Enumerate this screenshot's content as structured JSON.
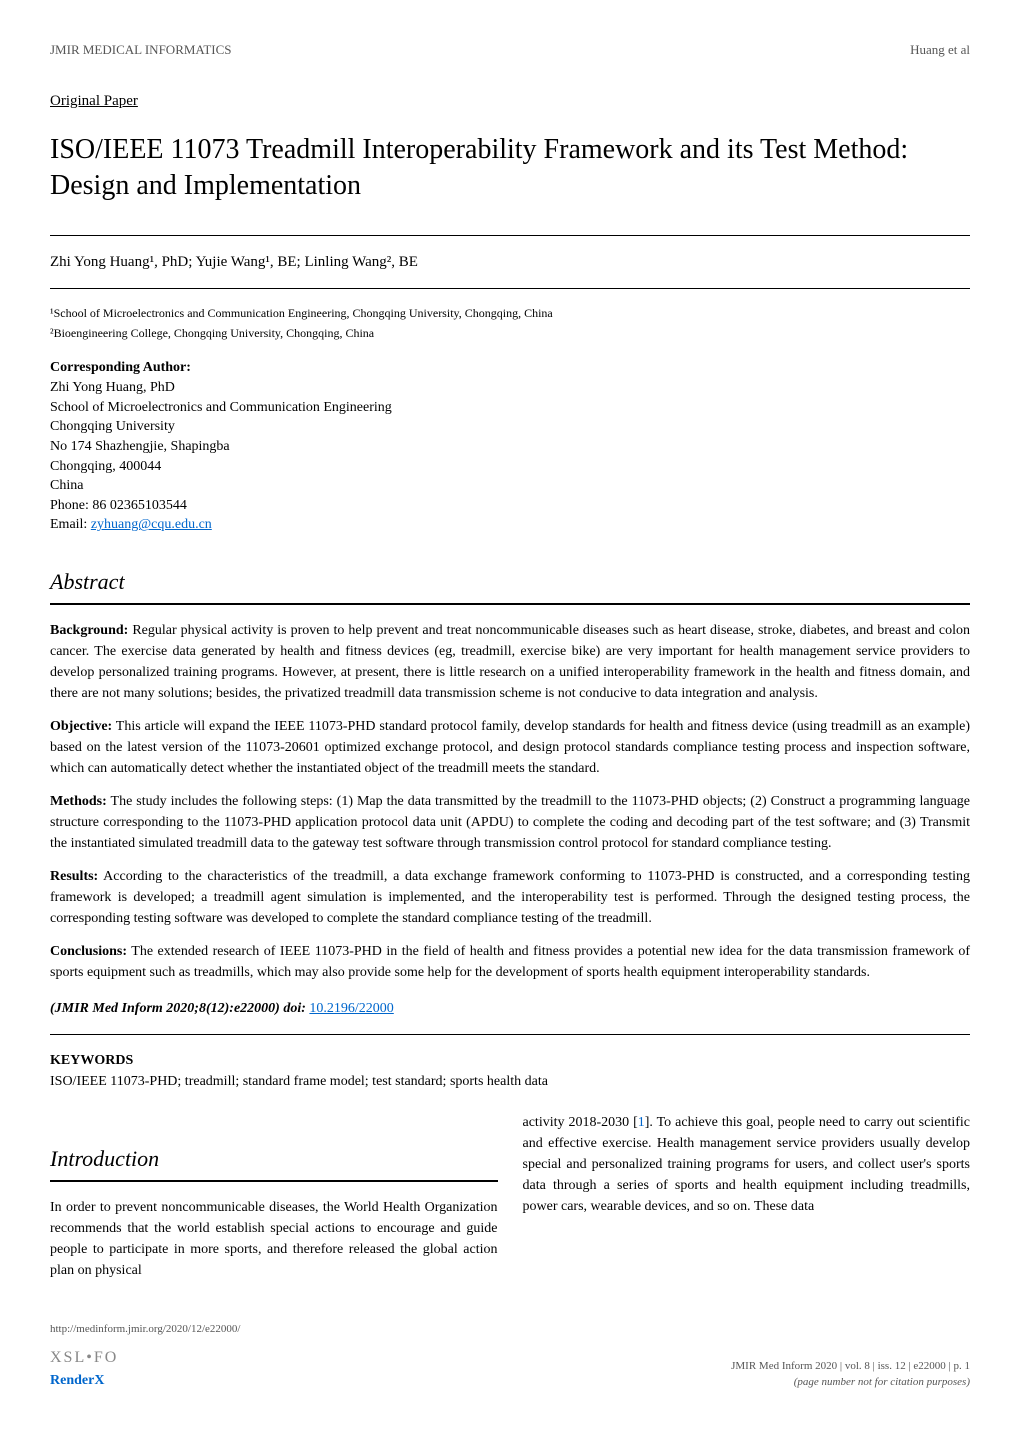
{
  "header": {
    "journal": "JMIR MEDICAL INFORMATICS",
    "authors_short": "Huang et al"
  },
  "paper_type": "Original Paper",
  "title": "ISO/IEEE 11073 Treadmill Interoperability Framework and its Test Method: Design and Implementation",
  "authors_line": "Zhi Yong Huang¹, PhD; Yujie Wang¹, BE; Linling Wang², BE",
  "affiliations": [
    "¹School of Microelectronics and Communication Engineering, Chongqing University, Chongqing, China",
    "²Bioengineering College, Chongqing University, Chongqing, China"
  ],
  "corresponding": {
    "label": "Corresponding Author:",
    "name": "Zhi Yong Huang, PhD",
    "dept": "School of Microelectronics and Communication Engineering",
    "university": "Chongqing University",
    "address": "No 174 Shazhengjie, Shapingba",
    "city": "Chongqing, 400044",
    "country": "China",
    "phone": "Phone: 86 02365103544",
    "email_label": "Email: ",
    "email": "zyhuang@cqu.edu.cn"
  },
  "abstract_heading": "Abstract",
  "abstract": {
    "background_label": "Background:",
    "background": " Regular physical activity is proven to help prevent and treat noncommunicable diseases such as heart disease, stroke, diabetes, and breast and colon cancer. The exercise data generated by health and fitness devices (eg, treadmill, exercise bike) are very important for health management service providers to develop personalized training programs. However, at present, there is little research on a unified interoperability framework in the health and fitness domain, and there are not many solutions; besides, the privatized treadmill data transmission scheme is not conducive to data integration and analysis.",
    "objective_label": "Objective:",
    "objective": " This article will expand the IEEE 11073-PHD standard protocol family, develop standards for health and fitness device (using treadmill as an example) based on the latest version of the 11073-20601 optimized exchange protocol, and design protocol standards compliance testing process and inspection software, which can automatically detect whether the instantiated object of the treadmill meets the standard.",
    "methods_label": "Methods:",
    "methods": " The study includes the following steps: (1) Map the data transmitted by the treadmill to the 11073-PHD objects; (2) Construct a programming language structure corresponding to the 11073-PHD application protocol data unit (APDU) to complete the coding and decoding part of the test software; and (3) Transmit the instantiated simulated treadmill data to the gateway test software through transmission control protocol for standard compliance testing.",
    "results_label": "Results:",
    "results": " According to the characteristics of the treadmill, a data exchange framework conforming to 11073-PHD is constructed, and a corresponding testing framework is developed; a treadmill agent simulation is implemented, and the interoperability test is performed. Through the designed testing process, the corresponding testing software was developed to complete the standard compliance testing of the treadmill.",
    "conclusions_label": "Conclusions:",
    "conclusions": " The extended research of IEEE 11073-PHD in the field of health and fitness provides a potential new idea for the data transmission framework of sports equipment such as treadmills, which may also provide some help for the development of sports health equipment interoperability standards."
  },
  "citation": {
    "text": "(JMIR Med Inform 2020;8(12):e22000)",
    "doi_label": " doi: ",
    "doi": "10.2196/22000"
  },
  "keywords": {
    "heading": "KEYWORDS",
    "text": "ISO/IEEE 11073-PHD; treadmill; standard frame model; test standard; sports health data"
  },
  "intro": {
    "heading": "Introduction",
    "col1": "In order to prevent noncommunicable diseases, the World Health Organization recommends that the world establish special actions to encourage and guide people to participate in more sports, and therefore released the global action plan on physical",
    "col2_pre": "activity 2018-2030 [",
    "col2_ref": "1",
    "col2_post": "]. To achieve this goal, people need to carry out scientific and effective exercise. Health management service providers usually develop special and personalized training programs for users, and collect user's sports data through a series of sports and health equipment including treadmills, power cars, wearable devices, and so on. These data"
  },
  "footer": {
    "url": "http://medinform.jmir.org/2020/12/e22000/",
    "right_line1": "JMIR Med Inform 2020 | vol. 8 | iss. 12 | e22000 | p. 1",
    "right_line2": "(page number not for citation purposes)",
    "logo_xsl": "XSL•FO",
    "logo_renderx": "RenderX"
  }
}
